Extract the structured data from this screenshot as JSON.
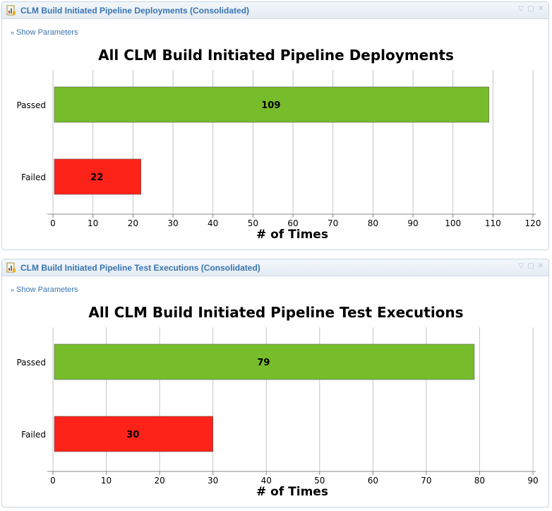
{
  "widgets": [
    {
      "header_title": "CLM Build Initiated Pipeline Deployments (Consolidated)",
      "show_parameters": "Show Parameters",
      "controls": {
        "collapse": "▽",
        "maximize": "□",
        "close": "✕"
      },
      "chart_data": {
        "type": "bar",
        "orientation": "horizontal",
        "title": "All CLM Build Initiated Pipeline Deployments",
        "xlabel": "# of Times",
        "ylabel": "",
        "categories": [
          "Passed",
          "Failed"
        ],
        "values": [
          109,
          22
        ],
        "colors": [
          "#77bc2a",
          "#fe2318"
        ],
        "xlim": [
          0,
          120
        ],
        "ticks": [
          0,
          10,
          20,
          30,
          40,
          50,
          60,
          70,
          80,
          90,
          100,
          110,
          120
        ],
        "grid": true
      }
    },
    {
      "header_title": "CLM Build Initiated Pipeline Test Executions (Consolidated)",
      "show_parameters": "Show Parameters",
      "controls": {
        "collapse": "▽",
        "maximize": "□",
        "close": "✕"
      },
      "chart_data": {
        "type": "bar",
        "orientation": "horizontal",
        "title": "All CLM Build Initiated Pipeline Test Executions",
        "xlabel": "# of Times",
        "ylabel": "",
        "categories": [
          "Passed",
          "Failed"
        ],
        "values": [
          79,
          30
        ],
        "colors": [
          "#77bc2a",
          "#fe2318"
        ],
        "xlim": [
          0,
          90
        ],
        "ticks": [
          0,
          10,
          20,
          30,
          40,
          50,
          60,
          70,
          80,
          90
        ],
        "grid": true
      }
    }
  ]
}
